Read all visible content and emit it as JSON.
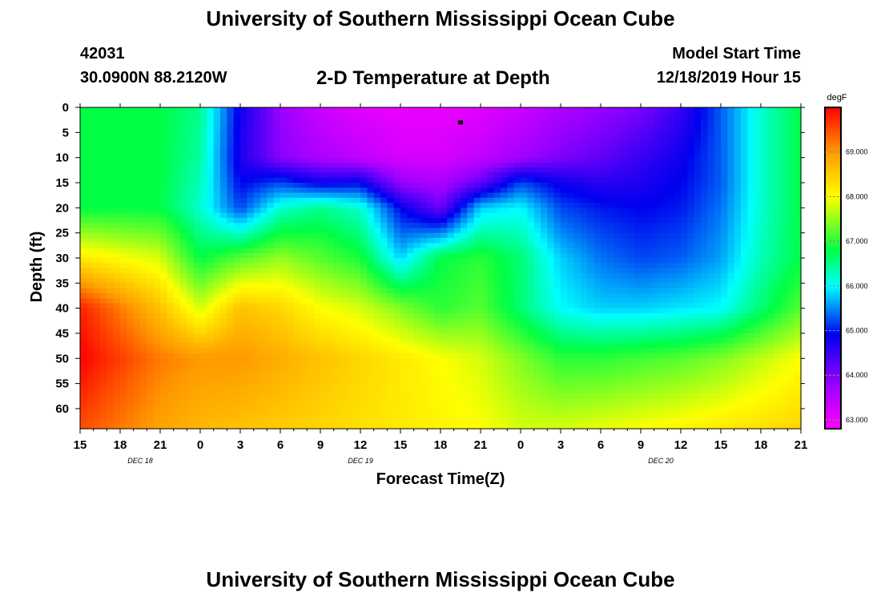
{
  "header": {
    "title": "University of Southern Mississippi Ocean Cube",
    "station_id": "42031",
    "station_coords": "30.0900N 88.2120W",
    "plot_title": "2-D Temperature at Depth",
    "model_label": "Model Start Time",
    "model_time": "12/18/2019 Hour 15"
  },
  "footer": {
    "title": "University of Southern Mississippi Ocean Cube"
  },
  "colors": {
    "background": "#ffffff",
    "axis": "#000000",
    "marker": "#000000"
  },
  "chart_data": {
    "type": "heatmap",
    "title": "2-D Temperature at Depth",
    "xlabel": "Forecast Time(Z)",
    "ylabel": "Depth (ft)",
    "x_ticks": [
      0,
      3,
      6,
      9,
      12,
      15,
      18,
      21,
      24,
      27,
      30,
      33,
      36,
      39,
      42,
      45,
      48,
      51,
      54
    ],
    "x_tick_labels": [
      "15",
      "18",
      "21",
      "0",
      "3",
      "6",
      "9",
      "12",
      "15",
      "18",
      "21",
      "0",
      "3",
      "6",
      "9",
      "12",
      "15",
      "18",
      "21"
    ],
    "x_range_hours": [
      0,
      54
    ],
    "day_labels": [
      {
        "hour": 4.5,
        "text": "DEC 18"
      },
      {
        "hour": 21,
        "text": "DEC 19"
      },
      {
        "hour": 43.5,
        "text": "DEC 20"
      }
    ],
    "y_ticks": [
      0,
      5,
      10,
      15,
      20,
      25,
      30,
      35,
      40,
      45,
      50,
      55,
      60
    ],
    "y_range_ft": [
      0,
      64
    ],
    "colorbar": {
      "unit": "degF",
      "range": [
        62.8,
        70.0
      ],
      "tick_values": [
        63.0,
        64.0,
        65.0,
        66.0,
        67.0,
        68.0,
        69.0
      ],
      "tick_labels": [
        "63.000",
        "64.000",
        "65.000",
        "66.000",
        "67.000",
        "68.000",
        "69.000"
      ],
      "scale": [
        {
          "v": 62.8,
          "color": "#ff00ff"
        },
        {
          "v": 63.8,
          "color": "#9900ff"
        },
        {
          "v": 64.9,
          "color": "#0000ee"
        },
        {
          "v": 66.0,
          "color": "#00ffff"
        },
        {
          "v": 66.8,
          "color": "#00ff44"
        },
        {
          "v": 68.0,
          "color": "#ffff00"
        },
        {
          "v": 69.0,
          "color": "#ff9900"
        },
        {
          "v": 70.0,
          "color": "#ff0000"
        }
      ]
    },
    "depth_levels_ft": [
      0,
      10,
      15,
      20,
      30,
      40,
      50,
      64
    ],
    "time_hours": [
      0,
      3,
      6,
      9,
      12,
      15,
      18,
      21,
      24,
      27,
      30,
      33,
      36,
      39,
      42,
      45,
      48,
      51,
      54
    ],
    "temperature_degF": [
      [
        66.8,
        66.8,
        66.8,
        66.5,
        64.8,
        63.8,
        63.3,
        63.1,
        63.0,
        63.0,
        63.1,
        63.3,
        63.6,
        63.8,
        64.0,
        64.5,
        65.3,
        66.2,
        66.8
      ],
      [
        66.8,
        66.8,
        66.8,
        66.4,
        64.7,
        63.9,
        63.6,
        63.4,
        63.2,
        63.2,
        63.4,
        63.7,
        64.0,
        64.2,
        64.5,
        64.8,
        65.3,
        66.2,
        66.8
      ],
      [
        66.8,
        66.8,
        66.8,
        66.3,
        64.9,
        65.2,
        64.8,
        64.9,
        63.8,
        63.6,
        64.2,
        65.2,
        64.8,
        64.6,
        64.7,
        64.9,
        65.3,
        66.2,
        66.8
      ],
      [
        66.8,
        66.8,
        66.8,
        66.2,
        65.2,
        66.2,
        66.5,
        66.2,
        64.9,
        64.1,
        65.8,
        66.0,
        65.2,
        65.0,
        64.9,
        65.0,
        65.4,
        66.2,
        66.8
      ],
      [
        68.2,
        68.0,
        67.8,
        66.8,
        67.2,
        67.5,
        67.2,
        66.9,
        65.8,
        66.8,
        67.0,
        66.6,
        65.8,
        65.4,
        65.2,
        65.3,
        65.6,
        66.3,
        66.8
      ],
      [
        69.8,
        69.2,
        68.6,
        67.8,
        68.6,
        68.4,
        68.0,
        67.8,
        67.4,
        67.0,
        67.2,
        66.6,
        66.0,
        65.8,
        65.8,
        65.9,
        66.0,
        66.6,
        67.2
      ],
      [
        70.0,
        69.6,
        69.2,
        69.0,
        69.0,
        68.8,
        68.6,
        68.4,
        68.2,
        68.0,
        67.8,
        67.4,
        67.0,
        67.0,
        67.1,
        67.2,
        67.4,
        67.7,
        68.0
      ],
      [
        69.5,
        69.2,
        68.9,
        68.7,
        68.6,
        68.5,
        68.4,
        68.3,
        68.2,
        68.1,
        68.0,
        67.8,
        67.8,
        67.9,
        68.0,
        68.1,
        68.2,
        68.3,
        68.4
      ]
    ],
    "marker": {
      "hour": 28.5,
      "depth": 3
    }
  }
}
